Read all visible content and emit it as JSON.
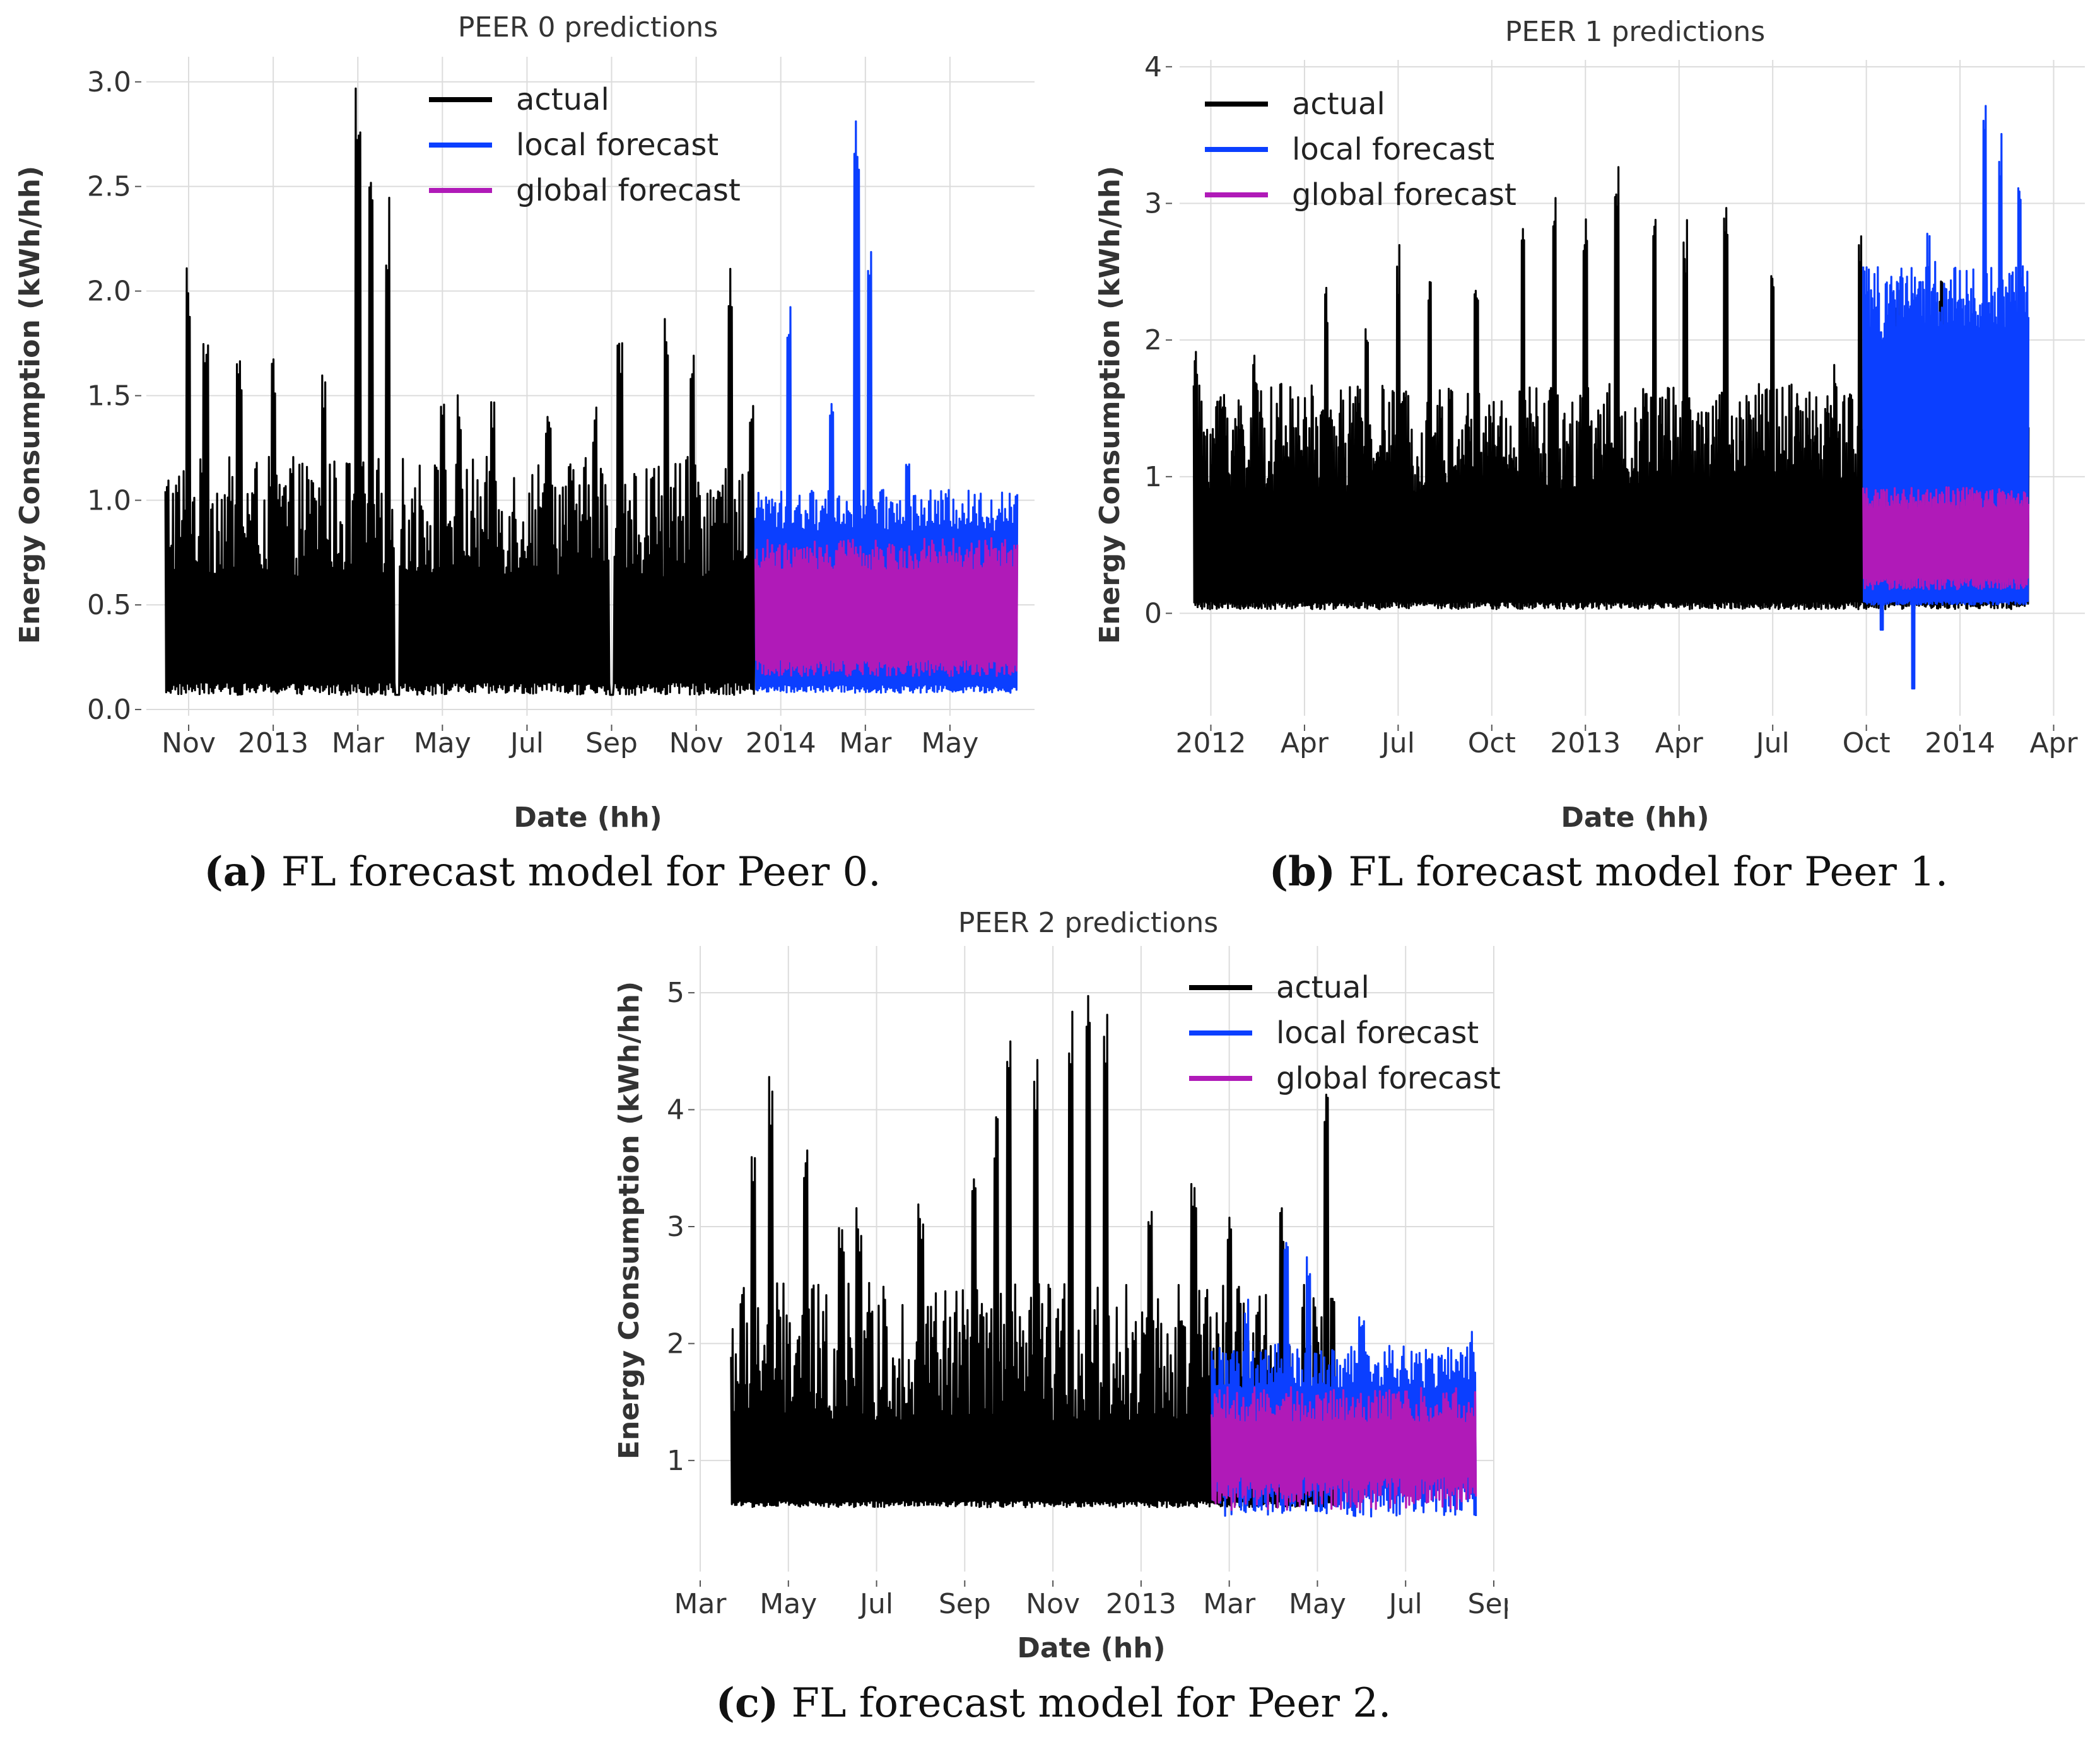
{
  "chart_data": [
    {
      "id": "peer0",
      "type": "line",
      "title": "PEER 0 predictions",
      "xlabel": "Date (hh)",
      "ylabel": "Energy Consumption (kWh/hh)",
      "caption_letter": "(a)",
      "caption_text": "FL forecast model for Peer 0.",
      "ylim": [
        -0.03,
        3.12
      ],
      "xlim_months": [
        0,
        21
      ],
      "x_ticks": [
        {
          "m": 1,
          "label": "Nov"
        },
        {
          "m": 3,
          "label": "2013"
        },
        {
          "m": 5,
          "label": "Mar"
        },
        {
          "m": 7,
          "label": "May"
        },
        {
          "m": 9,
          "label": "Jul"
        },
        {
          "m": 11,
          "label": "Sep"
        },
        {
          "m": 13,
          "label": "Nov"
        },
        {
          "m": 15,
          "label": "2014"
        },
        {
          "m": 17,
          "label": "Mar"
        },
        {
          "m": 19,
          "label": "May"
        }
      ],
      "y_ticks": [
        {
          "v": 0.0,
          "label": "0.0"
        },
        {
          "v": 0.5,
          "label": "0.5"
        },
        {
          "v": 1.0,
          "label": "1.0"
        },
        {
          "v": 1.5,
          "label": "1.5"
        },
        {
          "v": 2.0,
          "label": "2.0"
        },
        {
          "v": 2.5,
          "label": "2.5"
        },
        {
          "v": 3.0,
          "label": "3.0"
        }
      ],
      "legend": [
        "actual",
        "local forecast",
        "global forecast"
      ],
      "legend_position": "top-center",
      "series": [
        {
          "name": "actual",
          "color": "#000000",
          "x_start": 0.45,
          "x_end": 14.4,
          "baseline": 0.07,
          "typical_peak": 1.15,
          "peaks": [
            [
              1.0,
              2.17
            ],
            [
              1.4,
              1.9
            ],
            [
              2.2,
              1.72
            ],
            [
              3.0,
              1.7
            ],
            [
              4.2,
              1.65
            ],
            [
              5.0,
              3.0
            ],
            [
              5.3,
              2.53
            ],
            [
              5.7,
              2.47
            ],
            [
              7.0,
              1.58
            ],
            [
              7.4,
              1.51
            ],
            [
              8.2,
              1.55
            ],
            [
              9.5,
              1.55
            ],
            [
              10.6,
              1.5
            ],
            [
              11.2,
              1.76
            ],
            [
              12.3,
              1.95
            ],
            [
              12.9,
              1.72
            ],
            [
              13.8,
              2.11
            ],
            [
              14.3,
              1.55
            ],
            [
              15.0,
              2.28
            ],
            [
              15.7,
              2.3
            ],
            [
              16.4,
              2.52
            ],
            [
              17.2,
              2.44
            ]
          ],
          "gaps": [
            [
              5.88,
              5.98
            ],
            [
              10.95,
              11.05
            ]
          ]
        },
        {
          "name": "local forecast",
          "color": "#0b3fff",
          "x_start": 14.4,
          "x_end": 20.6,
          "low": 0.1,
          "high": 1.0,
          "peaks": [
            [
              15.2,
              1.93
            ],
            [
              16.2,
              1.55
            ],
            [
              16.8,
              2.85
            ],
            [
              17.1,
              2.24
            ],
            [
              18.0,
              1.2
            ]
          ]
        },
        {
          "name": "global forecast",
          "color": "#b01ab8",
          "x_start": 14.4,
          "x_end": 20.6,
          "low": 0.2,
          "high": 0.78
        }
      ]
    },
    {
      "id": "peer1",
      "type": "line",
      "title": "PEER 1 predictions",
      "xlabel": "Date (hh)",
      "ylabel": "Energy Consumption (kWh/hh)",
      "caption_letter": "(b)",
      "caption_text": "FL forecast model for Peer 1.",
      "ylim": [
        -0.75,
        4.05
      ],
      "xlim_months": [
        0,
        29
      ],
      "x_ticks": [
        {
          "m": 1,
          "label": "2012"
        },
        {
          "m": 4,
          "label": "Apr"
        },
        {
          "m": 7,
          "label": "Jul"
        },
        {
          "m": 10,
          "label": "Oct"
        },
        {
          "m": 13,
          "label": "2013"
        },
        {
          "m": 16,
          "label": "Apr"
        },
        {
          "m": 19,
          "label": "Jul"
        },
        {
          "m": 22,
          "label": "Oct"
        },
        {
          "m": 25,
          "label": "2014"
        },
        {
          "m": 28,
          "label": "Apr"
        }
      ],
      "y_ticks": [
        {
          "v": 0,
          "label": "0"
        },
        {
          "v": 1,
          "label": "1"
        },
        {
          "v": 2,
          "label": "2"
        },
        {
          "v": 3,
          "label": "3"
        },
        {
          "v": 4,
          "label": "4"
        }
      ],
      "legend": [
        "actual",
        "local forecast",
        "global forecast"
      ],
      "legend_position": "top-left",
      "series": [
        {
          "name": "actual",
          "color": "#000000",
          "x_start": 0.45,
          "x_end": 27.2,
          "baseline": 0.03,
          "typical_peak": 1.6,
          "peaks": [
            [
              0.5,
              1.93
            ],
            [
              1.4,
              1.65
            ],
            [
              2.4,
              1.9
            ],
            [
              4.7,
              2.4
            ],
            [
              6.0,
              2.14
            ],
            [
              7.0,
              2.7
            ],
            [
              8.0,
              2.65
            ],
            [
              9.5,
              2.4
            ],
            [
              11.0,
              2.9
            ],
            [
              12.0,
              3.3
            ],
            [
              13.0,
              3.1
            ],
            [
              14.0,
              3.3
            ],
            [
              15.2,
              3.1
            ],
            [
              16.2,
              2.9
            ],
            [
              17.5,
              3.15
            ],
            [
              19.0,
              2.65
            ],
            [
              21.0,
              1.9
            ],
            [
              21.8,
              2.8
            ],
            [
              23.0,
              2.45
            ],
            [
              24.4,
              2.6
            ]
          ],
          "gaps": []
        },
        {
          "name": "local forecast",
          "color": "#0b3fff",
          "x_start": 21.9,
          "x_end": 27.2,
          "low": 0.08,
          "high": 2.45,
          "peaks": [
            [
              22.5,
              2.2
            ],
            [
              24.0,
              2.8
            ],
            [
              25.8,
              3.85
            ],
            [
              26.3,
              3.55
            ],
            [
              26.9,
              3.2
            ]
          ],
          "dips": [
            [
              22.5,
              -0.12
            ],
            [
              23.5,
              -0.55
            ]
          ]
        },
        {
          "name": "global forecast",
          "color": "#b01ab8",
          "x_start": 21.9,
          "x_end": 27.2,
          "low": 0.22,
          "high": 0.88
        }
      ]
    },
    {
      "id": "peer2",
      "type": "line",
      "title": "PEER 2 predictions",
      "xlabel": "Date (hh)",
      "ylabel": "Energy Consumption (kWh/hh)",
      "caption_letter": "(c)",
      "caption_text": "FL forecast model for Peer 2.",
      "ylim": [
        0.05,
        5.4
      ],
      "xlim_months": [
        0,
        18
      ],
      "x_ticks": [
        {
          "m": 0,
          "label": "Mar"
        },
        {
          "m": 2,
          "label": "May"
        },
        {
          "m": 4,
          "label": "Jul"
        },
        {
          "m": 6,
          "label": "Sep"
        },
        {
          "m": 8,
          "label": "Nov"
        },
        {
          "m": 10,
          "label": "2013"
        },
        {
          "m": 12,
          "label": "Mar"
        },
        {
          "m": 14,
          "label": "May"
        },
        {
          "m": 16,
          "label": "Jul"
        },
        {
          "m": 18,
          "label": "Sep"
        }
      ],
      "y_ticks": [
        {
          "v": 1,
          "label": "1"
        },
        {
          "v": 2,
          "label": "2"
        },
        {
          "v": 3,
          "label": "3"
        },
        {
          "v": 4,
          "label": "4"
        },
        {
          "v": 5,
          "label": "5"
        }
      ],
      "legend": [
        "actual",
        "local forecast",
        "global forecast"
      ],
      "legend_position": "top-right",
      "series": [
        {
          "name": "actual",
          "color": "#000000",
          "x_start": 0.7,
          "x_end": 14.5,
          "baseline": 0.6,
          "typical_peak": 2.4,
          "peaks": [
            [
              1.2,
              3.8
            ],
            [
              1.6,
              4.35
            ],
            [
              2.4,
              3.7
            ],
            [
              3.2,
              3.2
            ],
            [
              3.6,
              3.25
            ],
            [
              5.0,
              3.3
            ],
            [
              6.2,
              3.6
            ],
            [
              6.7,
              4.0
            ],
            [
              7.0,
              4.6
            ],
            [
              7.6,
              4.55
            ],
            [
              8.4,
              4.95
            ],
            [
              8.8,
              5.25
            ],
            [
              9.2,
              4.93
            ],
            [
              10.2,
              3.2
            ],
            [
              11.2,
              3.4
            ],
            [
              12.0,
              3.3
            ],
            [
              13.2,
              3.3
            ],
            [
              14.2,
              4.4
            ]
          ],
          "gaps": []
        },
        {
          "name": "local forecast",
          "color": "#0b3fff",
          "x_start": 11.6,
          "x_end": 17.6,
          "low": 0.65,
          "high": 1.9,
          "peaks": [
            [
              12.4,
              2.4
            ],
            [
              13.3,
              3.1
            ],
            [
              13.8,
              2.8
            ],
            [
              15.0,
              2.3
            ],
            [
              17.5,
              2.12
            ]
          ]
        },
        {
          "name": "global forecast",
          "color": "#b01ab8",
          "x_start": 11.6,
          "x_end": 17.6,
          "low": 0.72,
          "high": 1.55
        }
      ]
    }
  ]
}
